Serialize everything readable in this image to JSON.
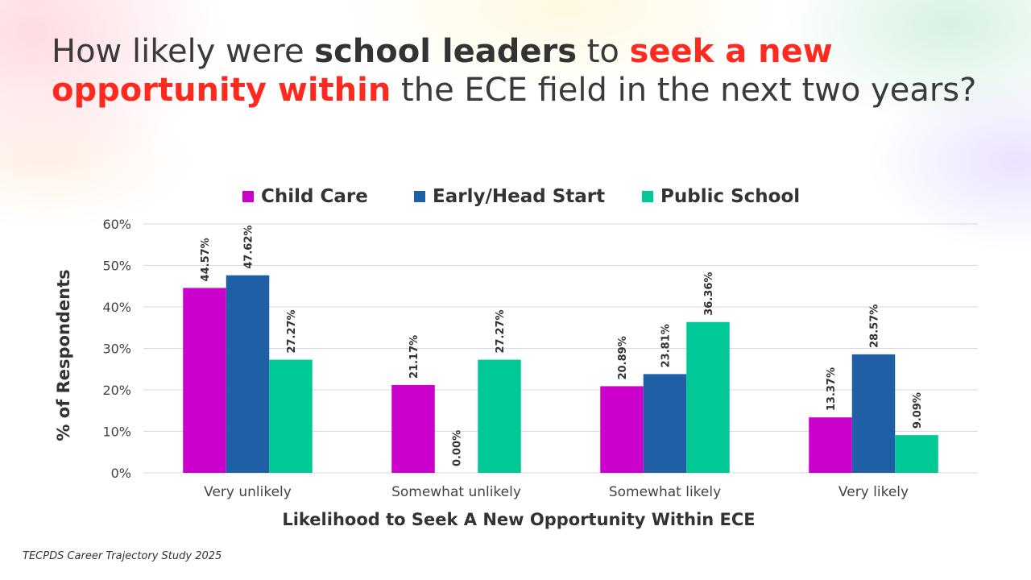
{
  "title": {
    "part1": "How likely were ",
    "part2": "school leaders",
    "part3": " to ",
    "part4": "seek a new opportunity within",
    "part5": " the ECE field in the next two years?"
  },
  "colors": {
    "child_care": "#cc00cc",
    "early_head_start": "#1f5fa6",
    "public_school": "#00c896",
    "gridline": "#d9d9d9",
    "text": "#333333",
    "highlight": "#ff2a1f"
  },
  "source": "TECPDS Career Trajectory Study 2025",
  "chart_data": {
    "type": "bar",
    "categories": [
      "Very unlikely",
      "Somewhat unlikely",
      "Somewhat likely",
      "Very likely"
    ],
    "series": [
      {
        "name": "Child Care",
        "values": [
          44.57,
          21.17,
          20.89,
          13.37
        ],
        "labels": [
          "44.57%",
          "21.17%",
          "20.89%",
          "13.37%"
        ]
      },
      {
        "name": "Early/Head Start",
        "values": [
          47.62,
          0.0,
          23.81,
          28.57
        ],
        "labels": [
          "47.62%",
          "0.00%",
          "23.81%",
          "28.57%"
        ]
      },
      {
        "name": "Public School",
        "values": [
          27.27,
          27.27,
          36.36,
          9.09
        ],
        "labels": [
          "27.27%",
          "27.27%",
          "36.36%",
          "9.09%"
        ]
      }
    ],
    "xlabel": "Likelihood to Seek A New Opportunity Within ECE",
    "ylabel": "% of Respondents",
    "ylim": [
      0,
      60
    ],
    "yticks": [
      0,
      10,
      20,
      30,
      40,
      50,
      60
    ],
    "ytick_labels": [
      "0%",
      "10%",
      "20%",
      "30%",
      "40%",
      "50%",
      "60%"
    ],
    "grid": true,
    "legend_position": "top"
  }
}
